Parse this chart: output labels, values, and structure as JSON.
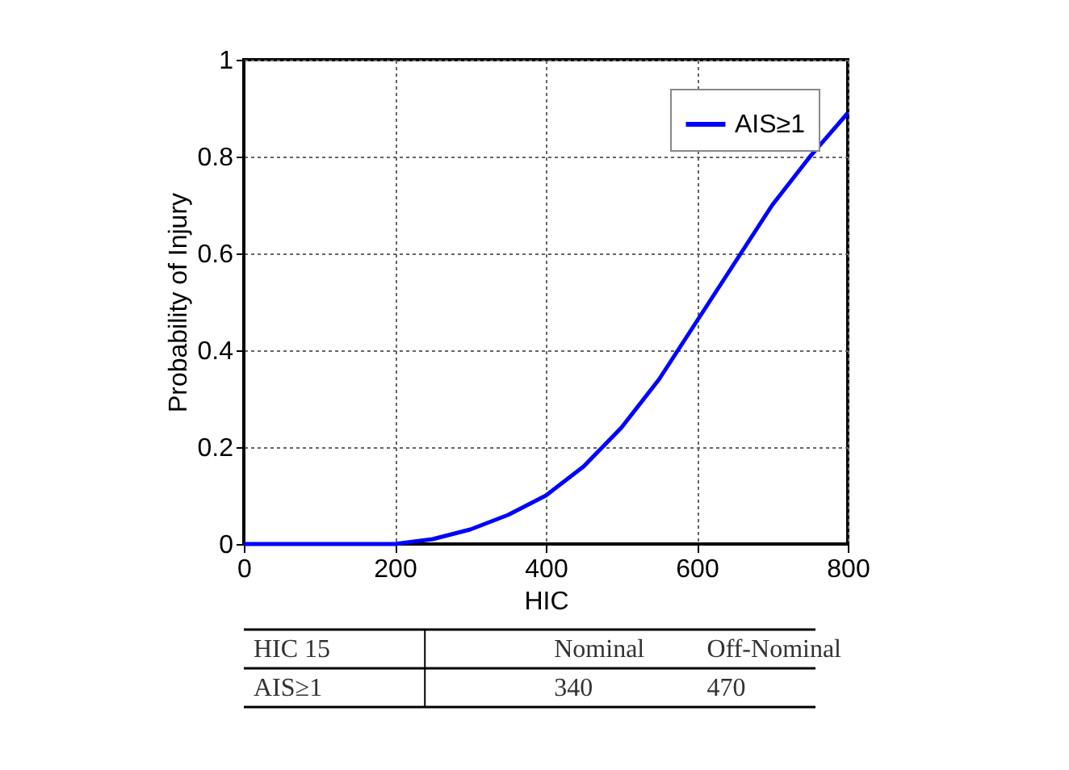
{
  "chart_data": {
    "type": "line",
    "xlabel": "HIC",
    "ylabel": "Probability of Injury",
    "x": [
      0,
      100,
      200,
      250,
      300,
      350,
      400,
      450,
      500,
      550,
      600,
      650,
      700,
      750,
      800
    ],
    "series": [
      {
        "name": "AIS≥1",
        "color": "#0000ff",
        "values": [
          0,
          0,
          0,
          0.01,
          0.03,
          0.06,
          0.1,
          0.16,
          0.24,
          0.34,
          0.46,
          0.58,
          0.7,
          0.8,
          0.89
        ]
      }
    ],
    "xlim": [
      0,
      800
    ],
    "ylim": [
      0,
      1
    ],
    "xticks": [
      0,
      200,
      400,
      600,
      800
    ],
    "yticks": [
      0,
      0.2,
      0.4,
      0.6,
      0.8,
      1
    ],
    "grid": true,
    "legend": "top right",
    "marker": "none",
    "line_style": "solid",
    "annotations": [
      "HIC 15",
      "Nominal",
      "Off-Nominal",
      "AIS≥1",
      "340",
      "470"
    ]
  }
}
